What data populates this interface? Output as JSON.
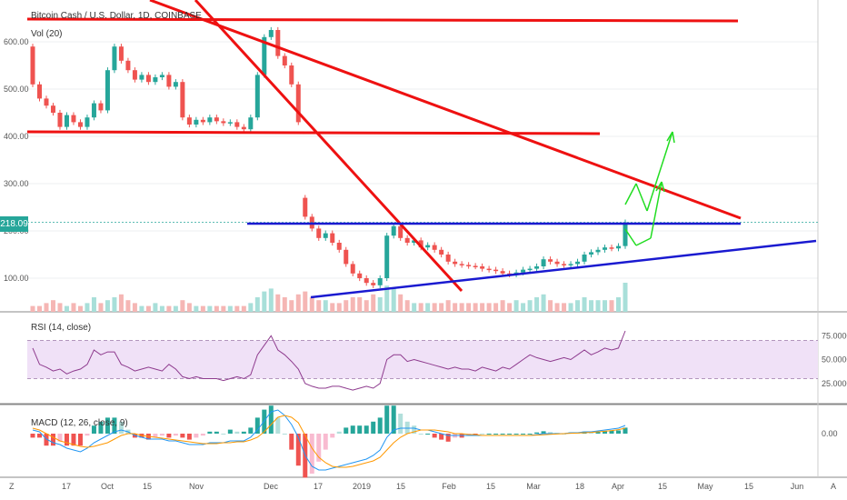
{
  "title": "Bitcoin Cash / U.S. Dollar, 1D, COINBASE",
  "volume_label": "Vol (20)",
  "rsi_label": "RSI (14, close)",
  "macd_label": "MACD (12, 26, close, 9)",
  "current_price": "218.09",
  "bottom_left_button": "Z",
  "bottom_right_button": "A",
  "colors": {
    "up": "#26a69a",
    "down": "#ef5350",
    "rsi_line": "#8e3b8e",
    "rsi_band": "#f0e1f7",
    "macd_line": "#2196f3",
    "signal_line": "#ff9800",
    "red_trendline": "#ee1111",
    "blue_trendline": "#1a1ad0",
    "green_arrow": "#22dd22"
  },
  "chart_data": {
    "type": "candlestick",
    "price_axis": {
      "ticks": [
        "600.00",
        "500.00",
        "400.00",
        "300.00",
        "200.00",
        "100.00"
      ],
      "values": [
        600,
        500,
        400,
        300,
        200,
        100
      ]
    },
    "rsi_axis": {
      "ticks": [
        "75.0000",
        "50.0000",
        "25.0000"
      ],
      "values": [
        75,
        50,
        25
      ],
      "bands": [
        30,
        70
      ]
    },
    "macd_axis": {
      "ticks": [
        "0.00"
      ],
      "values": [
        0
      ]
    },
    "x_axis": {
      "ticks": [
        "17",
        "Oct",
        "15",
        "Nov",
        "Dec",
        "17",
        "2019",
        "15",
        "Feb",
        "15",
        "Mar",
        "18",
        "Apr",
        "15",
        "May",
        "15",
        "Jun"
      ]
    },
    "price_series": [
      {
        "o": 590,
        "c": 510
      },
      {
        "o": 510,
        "c": 480
      },
      {
        "o": 480,
        "c": 465
      },
      {
        "o": 465,
        "c": 450
      },
      {
        "o": 450,
        "c": 420
      },
      {
        "o": 420,
        "c": 445
      },
      {
        "o": 445,
        "c": 430
      },
      {
        "o": 430,
        "c": 420
      },
      {
        "o": 420,
        "c": 440
      },
      {
        "o": 440,
        "c": 470
      },
      {
        "o": 470,
        "c": 455
      },
      {
        "o": 455,
        "c": 540
      },
      {
        "o": 540,
        "c": 590
      },
      {
        "o": 590,
        "c": 560
      },
      {
        "o": 560,
        "c": 540
      },
      {
        "o": 540,
        "c": 520
      },
      {
        "o": 520,
        "c": 530
      },
      {
        "o": 530,
        "c": 515
      },
      {
        "o": 515,
        "c": 525
      },
      {
        "o": 525,
        "c": 530
      },
      {
        "o": 530,
        "c": 505
      },
      {
        "o": 505,
        "c": 515
      },
      {
        "o": 515,
        "c": 440
      },
      {
        "o": 440,
        "c": 425
      },
      {
        "o": 425,
        "c": 435
      },
      {
        "o": 435,
        "c": 430
      },
      {
        "o": 430,
        "c": 440
      },
      {
        "o": 440,
        "c": 432
      },
      {
        "o": 432,
        "c": 428
      },
      {
        "o": 428,
        "c": 430
      },
      {
        "o": 430,
        "c": 420
      },
      {
        "o": 420,
        "c": 415
      },
      {
        "o": 415,
        "c": 440
      },
      {
        "o": 440,
        "c": 530
      },
      {
        "o": 530,
        "c": 610
      },
      {
        "o": 610,
        "c": 625
      },
      {
        "o": 625,
        "c": 570
      },
      {
        "o": 570,
        "c": 550
      },
      {
        "o": 550,
        "c": 510
      },
      {
        "o": 510,
        "c": 430
      },
      {
        "o": 270,
        "c": 230
      },
      {
        "o": 230,
        "c": 205
      },
      {
        "o": 205,
        "c": 185
      },
      {
        "o": 185,
        "c": 195
      },
      {
        "o": 195,
        "c": 175
      },
      {
        "o": 175,
        "c": 160
      },
      {
        "o": 160,
        "c": 130
      },
      {
        "o": 130,
        "c": 110
      },
      {
        "o": 110,
        "c": 100
      },
      {
        "o": 100,
        "c": 90
      },
      {
        "o": 90,
        "c": 85
      },
      {
        "o": 85,
        "c": 100
      },
      {
        "o": 100,
        "c": 190
      },
      {
        "o": 190,
        "c": 210
      },
      {
        "o": 210,
        "c": 185
      },
      {
        "o": 185,
        "c": 175
      },
      {
        "o": 175,
        "c": 180
      },
      {
        "o": 180,
        "c": 165
      },
      {
        "o": 165,
        "c": 170
      },
      {
        "o": 170,
        "c": 160
      },
      {
        "o": 160,
        "c": 150
      },
      {
        "o": 150,
        "c": 135
      },
      {
        "o": 135,
        "c": 130
      },
      {
        "o": 130,
        "c": 128
      },
      {
        "o": 128,
        "c": 126
      },
      {
        "o": 126,
        "c": 125
      },
      {
        "o": 125,
        "c": 120
      },
      {
        "o": 120,
        "c": 118
      },
      {
        "o": 118,
        "c": 115
      },
      {
        "o": 115,
        "c": 110
      },
      {
        "o": 110,
        "c": 108
      },
      {
        "o": 108,
        "c": 112
      },
      {
        "o": 112,
        "c": 118
      },
      {
        "o": 118,
        "c": 120
      },
      {
        "o": 120,
        "c": 125
      },
      {
        "o": 125,
        "c": 140
      },
      {
        "o": 140,
        "c": 135
      },
      {
        "o": 135,
        "c": 130
      },
      {
        "o": 130,
        "c": 128
      },
      {
        "o": 128,
        "c": 130
      },
      {
        "o": 130,
        "c": 135
      },
      {
        "o": 135,
        "c": 150
      },
      {
        "o": 150,
        "c": 155
      },
      {
        "o": 155,
        "c": 160
      },
      {
        "o": 160,
        "c": 165
      },
      {
        "o": 165,
        "c": 163
      },
      {
        "o": 163,
        "c": 168
      },
      {
        "o": 168,
        "c": 218
      }
    ],
    "volume": [
      2,
      2,
      3,
      4,
      3,
      2,
      3,
      2,
      3,
      5,
      3,
      4,
      5,
      6,
      4,
      3,
      2,
      2,
      3,
      2,
      2,
      2,
      4,
      3,
      2,
      2,
      2,
      2,
      2,
      2,
      2,
      2,
      3,
      5,
      7,
      8,
      6,
      5,
      4,
      6,
      7,
      5,
      4,
      4,
      3,
      3,
      4,
      5,
      5,
      4,
      6,
      5,
      9,
      8,
      6,
      4,
      3,
      3,
      3,
      3,
      3,
      4,
      3,
      3,
      3,
      3,
      3,
      3,
      3,
      4,
      3,
      4,
      3,
      4,
      5,
      6,
      4,
      3,
      3,
      3,
      4,
      5,
      4,
      4,
      4,
      4,
      5,
      10
    ],
    "rsi": [
      62,
      45,
      42,
      38,
      40,
      35,
      38,
      40,
      45,
      60,
      55,
      58,
      58,
      45,
      42,
      38,
      40,
      42,
      40,
      38,
      45,
      40,
      32,
      30,
      32,
      30,
      30,
      30,
      28,
      30,
      32,
      30,
      34,
      55,
      65,
      75,
      60,
      55,
      48,
      40,
      25,
      22,
      20,
      20,
      22,
      22,
      20,
      18,
      20,
      22,
      20,
      25,
      50,
      55,
      55,
      48,
      50,
      48,
      46,
      44,
      42,
      40,
      42,
      40,
      40,
      38,
      42,
      40,
      38,
      42,
      40,
      45,
      50,
      55,
      52,
      50,
      48,
      50,
      52,
      50,
      55,
      60,
      55,
      58,
      62,
      60,
      62,
      80
    ],
    "macd": [
      0.2,
      0.1,
      -0.3,
      -0.5,
      -0.6,
      -0.8,
      -0.9,
      -1.0,
      -0.8,
      -0.5,
      -0.3,
      -0.1,
      0.1,
      0.2,
      0.1,
      -0.1,
      -0.2,
      -0.3,
      -0.3,
      -0.3,
      -0.4,
      -0.4,
      -0.5,
      -0.6,
      -0.6,
      -0.6,
      -0.5,
      -0.5,
      -0.5,
      -0.4,
      -0.4,
      -0.4,
      -0.2,
      0.2,
      0.7,
      1.2,
      1.3,
      1.0,
      0.5,
      -0.2,
      -1.2,
      -1.8,
      -2.0,
      -2.0,
      -1.9,
      -1.8,
      -1.7,
      -1.6,
      -1.5,
      -1.4,
      -1.2,
      -0.9,
      -0.2,
      0.2,
      0.3,
      0.3,
      0.3,
      0.2,
      0.2,
      0.1,
      0.0,
      -0.1,
      -0.1,
      -0.1,
      -0.1,
      -0.1,
      -0.1,
      -0.1,
      -0.1,
      -0.1,
      -0.1,
      -0.1,
      -0.1,
      -0.1,
      -0.05,
      0.0,
      0.0,
      0.0,
      0.0,
      0.05,
      0.05,
      0.1,
      0.1,
      0.15,
      0.2,
      0.25,
      0.3,
      0.45
    ],
    "signal": [
      0.3,
      0.2,
      0.0,
      -0.2,
      -0.4,
      -0.5,
      -0.6,
      -0.7,
      -0.75,
      -0.7,
      -0.6,
      -0.5,
      -0.3,
      -0.1,
      0.0,
      0.0,
      -0.1,
      -0.15,
      -0.2,
      -0.25,
      -0.3,
      -0.35,
      -0.4,
      -0.45,
      -0.5,
      -0.55,
      -0.55,
      -0.55,
      -0.5,
      -0.5,
      -0.45,
      -0.45,
      -0.35,
      -0.2,
      0.1,
      0.5,
      0.9,
      1.0,
      0.9,
      0.6,
      -0.1,
      -0.8,
      -1.3,
      -1.6,
      -1.8,
      -1.85,
      -1.85,
      -1.8,
      -1.7,
      -1.6,
      -1.5,
      -1.3,
      -0.9,
      -0.5,
      -0.2,
      0.0,
      0.1,
      0.2,
      0.2,
      0.2,
      0.15,
      0.1,
      0.0,
      0.0,
      -0.05,
      -0.05,
      -0.1,
      -0.1,
      -0.1,
      -0.1,
      -0.1,
      -0.1,
      -0.1,
      -0.1,
      -0.08,
      -0.06,
      -0.04,
      -0.02,
      0.0,
      0.02,
      0.03,
      0.05,
      0.07,
      0.1,
      0.13,
      0.17,
      0.22,
      0.3
    ]
  }
}
